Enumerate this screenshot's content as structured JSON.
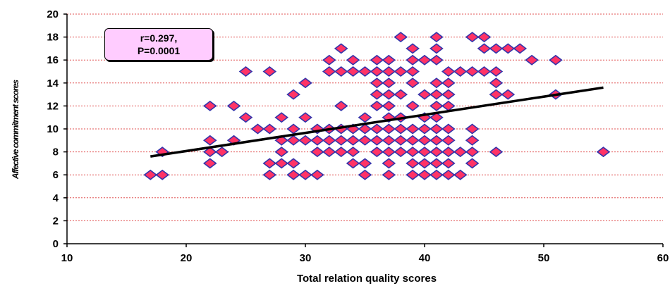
{
  "chart_data": {
    "type": "scatter",
    "xlabel": "Total relation quality scores",
    "ylabel": "Affective commitment scores",
    "xlim": [
      10,
      60
    ],
    "ylim": [
      0,
      20
    ],
    "xticks": [
      "10",
      "20",
      "30",
      "40",
      "50",
      "60"
    ],
    "yticks": [
      "0",
      "2",
      "4",
      "6",
      "8",
      "10",
      "12",
      "14",
      "16",
      "18",
      "20"
    ],
    "grid": "horizontal dashed red",
    "annotation": {
      "line1": "r=0.297,",
      "line2": "P=0.0001"
    },
    "trendline": {
      "x": [
        17,
        55
      ],
      "y": [
        7.6,
        13.6
      ]
    },
    "marker_color": "#ff3366",
    "marker_edge": "#3333aa",
    "points": [
      [
        17,
        6
      ],
      [
        18,
        8
      ],
      [
        18,
        6
      ],
      [
        22,
        12
      ],
      [
        22,
        9
      ],
      [
        22,
        8
      ],
      [
        22,
        7
      ],
      [
        23,
        8
      ],
      [
        24,
        12
      ],
      [
        24,
        9
      ],
      [
        25,
        15
      ],
      [
        25,
        11
      ],
      [
        26,
        10
      ],
      [
        27,
        15
      ],
      [
        27,
        10
      ],
      [
        27,
        7
      ],
      [
        27,
        6
      ],
      [
        28,
        11
      ],
      [
        28,
        9
      ],
      [
        28,
        8
      ],
      [
        28,
        7
      ],
      [
        29,
        13
      ],
      [
        29,
        10
      ],
      [
        29,
        9
      ],
      [
        29,
        7
      ],
      [
        29,
        6
      ],
      [
        30,
        14
      ],
      [
        30,
        11
      ],
      [
        30,
        9
      ],
      [
        30,
        6
      ],
      [
        31,
        10
      ],
      [
        31,
        9
      ],
      [
        31,
        8
      ],
      [
        31,
        6
      ],
      [
        32,
        16
      ],
      [
        32,
        15
      ],
      [
        32,
        10
      ],
      [
        32,
        9
      ],
      [
        32,
        8
      ],
      [
        33,
        17
      ],
      [
        33,
        15
      ],
      [
        33,
        12
      ],
      [
        33,
        10
      ],
      [
        33,
        9
      ],
      [
        33,
        8
      ],
      [
        34,
        16
      ],
      [
        34,
        15
      ],
      [
        34,
        10
      ],
      [
        34,
        9
      ],
      [
        34,
        8
      ],
      [
        34,
        7
      ],
      [
        35,
        15
      ],
      [
        35,
        11
      ],
      [
        35,
        10
      ],
      [
        35,
        9
      ],
      [
        35,
        7
      ],
      [
        35,
        6
      ],
      [
        36,
        16
      ],
      [
        36,
        15
      ],
      [
        36,
        14
      ],
      [
        36,
        13
      ],
      [
        36,
        12
      ],
      [
        36,
        10
      ],
      [
        36,
        9
      ],
      [
        36,
        8
      ],
      [
        37,
        16
      ],
      [
        37,
        15
      ],
      [
        37,
        14
      ],
      [
        37,
        13
      ],
      [
        37,
        12
      ],
      [
        37,
        11
      ],
      [
        37,
        10
      ],
      [
        37,
        9
      ],
      [
        37,
        8
      ],
      [
        37,
        7
      ],
      [
        37,
        6
      ],
      [
        38,
        18
      ],
      [
        38,
        15
      ],
      [
        38,
        13
      ],
      [
        38,
        11
      ],
      [
        38,
        10
      ],
      [
        38,
        9
      ],
      [
        38,
        8
      ],
      [
        39,
        17
      ],
      [
        39,
        16
      ],
      [
        39,
        15
      ],
      [
        39,
        14
      ],
      [
        39,
        12
      ],
      [
        39,
        10
      ],
      [
        39,
        9
      ],
      [
        39,
        8
      ],
      [
        39,
        7
      ],
      [
        39,
        6
      ],
      [
        40,
        16
      ],
      [
        40,
        13
      ],
      [
        40,
        11
      ],
      [
        40,
        10
      ],
      [
        40,
        9
      ],
      [
        40,
        8
      ],
      [
        40,
        7
      ],
      [
        40,
        6
      ],
      [
        41,
        18
      ],
      [
        41,
        17
      ],
      [
        41,
        16
      ],
      [
        41,
        14
      ],
      [
        41,
        13
      ],
      [
        41,
        12
      ],
      [
        41,
        11
      ],
      [
        41,
        10
      ],
      [
        41,
        9
      ],
      [
        41,
        8
      ],
      [
        41,
        7
      ],
      [
        41,
        6
      ],
      [
        42,
        15
      ],
      [
        42,
        14
      ],
      [
        42,
        13
      ],
      [
        42,
        12
      ],
      [
        42,
        10
      ],
      [
        42,
        9
      ],
      [
        42,
        8
      ],
      [
        42,
        7
      ],
      [
        42,
        6
      ],
      [
        43,
        15
      ],
      [
        43,
        8
      ],
      [
        43,
        6
      ],
      [
        44,
        18
      ],
      [
        44,
        15
      ],
      [
        44,
        10
      ],
      [
        44,
        9
      ],
      [
        44,
        8
      ],
      [
        44,
        7
      ],
      [
        45,
        18
      ],
      [
        45,
        17
      ],
      [
        45,
        15
      ],
      [
        46,
        17
      ],
      [
        46,
        15
      ],
      [
        46,
        14
      ],
      [
        46,
        13
      ],
      [
        46,
        8
      ],
      [
        47,
        17
      ],
      [
        47,
        13
      ],
      [
        48,
        17
      ],
      [
        49,
        16
      ],
      [
        51,
        16
      ],
      [
        51,
        13
      ],
      [
        55,
        8
      ]
    ]
  }
}
